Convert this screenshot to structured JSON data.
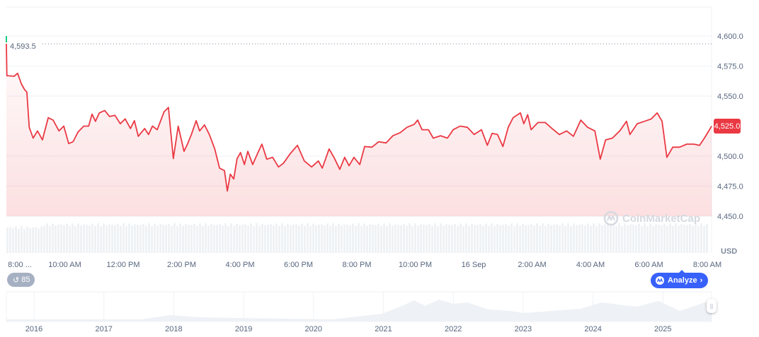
{
  "chart_data": {
    "type": "area",
    "currency": "USD",
    "ylim": [
      4440,
      4620
    ],
    "y_ticks": [
      "4,600.0",
      "4,575.0",
      "4,550.0",
      "4,500.0",
      "4,475.0",
      "4,450.0"
    ],
    "y_tick_values": [
      4600,
      4575,
      4550,
      4500,
      4475,
      4450
    ],
    "x_ticks": [
      "8:00 ...",
      "10:00 AM",
      "12:00 PM",
      "2:00 PM",
      "4:00 PM",
      "6:00 PM",
      "8:00 PM",
      "10:00 PM",
      "16 Sep",
      "2:00 AM",
      "4:00 AM",
      "6:00 AM",
      "8:00 AM"
    ],
    "x_tick_times": [
      "08:00",
      "10:00",
      "12:00",
      "14:00",
      "16:00",
      "18:00",
      "20:00",
      "22:00",
      "00:00",
      "02:00",
      "04:00",
      "06:00",
      "08:00"
    ],
    "open_label": "4,593.5",
    "open_value": 4593.5,
    "last_label": "4,525.0",
    "last_value": 4525.0,
    "line_color": "#ea3943",
    "grid": true,
    "series": [
      {
        "times": [
          "08:00",
          "08:01",
          "08:16",
          "08:23",
          "08:31",
          "08:38",
          "08:42",
          "08:47",
          "08:55",
          "09:04",
          "09:14",
          "09:26",
          "09:36",
          "09:48",
          "09:58",
          "10:08",
          "10:17",
          "10:27",
          "10:39",
          "10:49",
          "10:56",
          "11:03",
          "11:11",
          "11:22",
          "11:32",
          "11:43",
          "11:54",
          "12:04",
          "12:15",
          "12:23",
          "12:31",
          "12:44",
          "12:52",
          "13:00",
          "13:10",
          "13:24",
          "13:33",
          "13:43",
          "13:53",
          "14:05",
          "14:12",
          "14:20",
          "14:30",
          "14:37",
          "14:47",
          "14:57",
          "15:08",
          "15:18",
          "15:28",
          "15:34",
          "15:40",
          "15:47",
          "15:54",
          "16:01",
          "16:09",
          "16:16",
          "16:26",
          "16:38",
          "16:45",
          "16:55",
          "17:07",
          "17:19",
          "17:29",
          "17:43",
          "17:58",
          "18:12",
          "18:27",
          "18:41",
          "18:49",
          "19:03",
          "19:13",
          "19:25",
          "19:35",
          "19:44",
          "19:54",
          "20:06",
          "20:16",
          "20:31",
          "20:45",
          "21:00",
          "21:14",
          "21:29",
          "21:43",
          "21:58",
          "22:05",
          "22:14",
          "22:27",
          "22:37",
          "22:52",
          "23:06",
          "23:18",
          "23:32",
          "23:47",
          "00:01",
          "00:16",
          "00:28",
          "00:38",
          "00:49",
          "01:00",
          "01:11",
          "01:21",
          "01:36",
          "01:43",
          "01:51",
          "01:58",
          "02:12",
          "02:27",
          "02:41",
          "02:56",
          "03:11",
          "03:25",
          "03:40",
          "03:54",
          "04:09",
          "04:20",
          "04:31",
          "04:45",
          "05:00",
          "05:14",
          "05:21",
          "05:36",
          "05:51",
          "06:05",
          "06:17",
          "06:27",
          "06:37",
          "06:49",
          "07:03",
          "07:18",
          "07:32",
          "07:44",
          "07:54",
          "08:09"
        ],
        "values": [
          4593.5,
          4567,
          4566.5,
          4569,
          4560,
          4555,
          4553.5,
          4524,
          4515,
          4521,
          4513.5,
          4532,
          4530,
          4521,
          4525,
          4510.5,
          4512,
          4520,
          4525,
          4525,
          4535,
          4529,
          4536,
          4538,
          4533,
          4534,
          4527,
          4531,
          4523,
          4529.5,
          4516.5,
          4523,
          4518,
          4525,
          4522,
          4537,
          4540.5,
          4498,
          4525,
          4504,
          4510,
          4518,
          4529.5,
          4521,
          4526,
          4518,
          4506,
          4490,
          4488,
          4471,
          4485,
          4481,
          4498,
          4503,
          4493,
          4504,
          4493,
          4504,
          4510,
          4497.5,
          4499,
          4491,
          4494,
          4502,
          4509,
          4496,
          4491,
          4496,
          4490,
          4506,
          4499,
          4489,
          4499,
          4492,
          4499,
          4493,
          4508,
          4507.5,
          4512,
          4511,
          4517,
          4519.5,
          4524,
          4526.5,
          4530,
          4522,
          4522,
          4515,
          4517,
          4515,
          4522,
          4525,
          4524,
          4518,
          4522,
          4509,
          4519,
          4518,
          4508,
          4524,
          4532,
          4536,
          4527,
          4534.5,
          4522,
          4528,
          4528,
          4523,
          4518,
          4521,
          4516.5,
          4530,
          4524,
          4521,
          4497.5,
          4513.5,
          4515,
          4521,
          4529,
          4518,
          4527,
          4529,
          4531,
          4536,
          4529,
          4499,
          4507.5,
          4507.5,
          4510,
          4510,
          4509,
          4515,
          4525
        ]
      }
    ],
    "navigator": {
      "x_ticks": [
        "2016",
        "2017",
        "2018",
        "2019",
        "2020",
        "2021",
        "2022",
        "2023",
        "2024",
        "2025"
      ]
    }
  },
  "watermark": "CoinMarketCap",
  "currency_label": "USD",
  "history_button": {
    "count": "85"
  },
  "analyze_button": {
    "label": "Analyze"
  }
}
